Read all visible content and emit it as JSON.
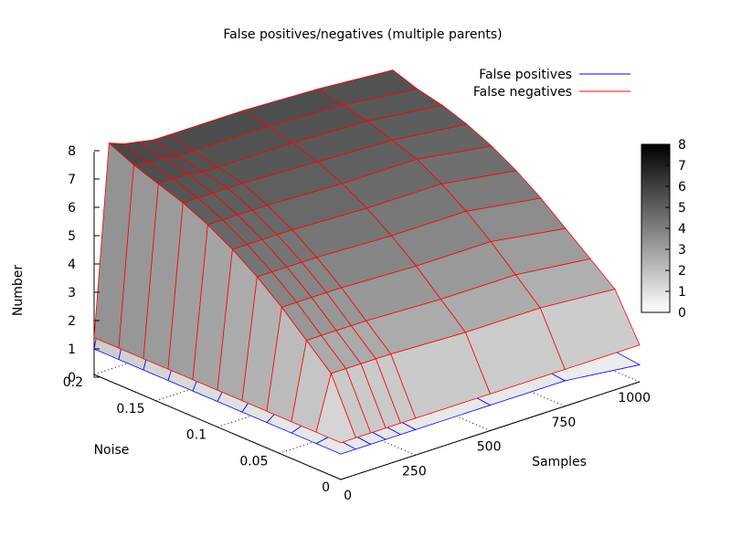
{
  "chart_data": {
    "type": "surface",
    "title": "False positives/negatives (multiple parents)",
    "xlabel": "Samples",
    "ylabel": "Noise",
    "zlabel": "Number",
    "xlim": [
      0,
      1000
    ],
    "ylim": [
      0,
      0.2
    ],
    "zlim": [
      0,
      8
    ],
    "x_ticks": [
      "0",
      "250",
      "500",
      "750",
      "1000"
    ],
    "y_ticks": [
      "0",
      "0.05",
      "0.1",
      "0.15",
      "0.2"
    ],
    "z_ticks": [
      "0",
      "1",
      "2",
      "3",
      "4",
      "5",
      "6",
      "7",
      "8"
    ],
    "colorbox_ticks": [
      "0",
      "1",
      "2",
      "3",
      "4",
      "5",
      "6",
      "7",
      "8"
    ],
    "colorbox": "grayscale, right side",
    "legend_position": "top-right",
    "samples": [
      0,
      50,
      100,
      150,
      200,
      250,
      500,
      750,
      1000
    ],
    "noise": [
      0,
      0.02,
      0.04,
      0.06,
      0.08,
      0.1,
      0.12,
      0.14,
      0.16,
      0.18,
      0.2
    ],
    "series": [
      {
        "name": "False positives",
        "color": "#0000ff",
        "values": [
          [
            0.9,
            0.9,
            0.9,
            0.9,
            0.9,
            0.9,
            0.9,
            0.9,
            0.9,
            0.9,
            0.9
          ],
          [
            0.9,
            1.0,
            1.1,
            1.3,
            1.5,
            1.8,
            2.1,
            2.4,
            2.8,
            3.2,
            3.5
          ],
          [
            0.9,
            1.0,
            1.1,
            1.3,
            1.5,
            1.8,
            2.1,
            2.4,
            2.8,
            3.2,
            3.4
          ],
          [
            0.9,
            1.0,
            1.1,
            1.3,
            1.5,
            1.8,
            2.1,
            2.4,
            2.8,
            3.1,
            3.3
          ],
          [
            0.9,
            1.0,
            1.1,
            1.3,
            1.5,
            1.8,
            2.1,
            2.4,
            2.7,
            3.1,
            3.3
          ],
          [
            0.9,
            1.0,
            1.1,
            1.3,
            1.5,
            1.8,
            2.1,
            2.4,
            2.7,
            3.0,
            3.3
          ],
          [
            0.9,
            1.0,
            1.1,
            1.3,
            1.5,
            1.8,
            2.1,
            2.4,
            2.7,
            3.0,
            3.2
          ],
          [
            0.9,
            1.0,
            1.1,
            1.3,
            1.5,
            1.8,
            2.0,
            2.3,
            2.6,
            2.9,
            3.1
          ],
          [
            0.6,
            0.7,
            0.8,
            0.9,
            1.1,
            1.3,
            1.6,
            1.9,
            2.1,
            2.4,
            2.6
          ]
        ]
      },
      {
        "name": "False negatives",
        "color": "#ff0000",
        "values": [
          [
            1.3,
            1.3,
            1.3,
            1.3,
            1.3,
            1.3,
            1.3,
            1.3,
            1.3,
            1.3,
            1.3
          ],
          [
            1.3,
            3.2,
            4.0,
            4.8,
            5.5,
            6.1,
            6.6,
            7.0,
            7.3,
            7.6,
            8.0
          ],
          [
            1.3,
            3.2,
            4.0,
            4.8,
            5.5,
            6.1,
            6.6,
            7.0,
            7.3,
            7.5,
            7.8
          ],
          [
            1.3,
            3.2,
            4.0,
            4.8,
            5.5,
            6.1,
            6.6,
            7.0,
            7.3,
            7.5,
            7.7
          ],
          [
            1.3,
            3.2,
            4.0,
            4.8,
            5.5,
            6.1,
            6.6,
            7.0,
            7.2,
            7.4,
            7.6
          ],
          [
            1.3,
            3.2,
            4.0,
            4.8,
            5.5,
            6.1,
            6.6,
            7.0,
            7.2,
            7.4,
            7.6
          ],
          [
            1.3,
            3.1,
            3.9,
            4.7,
            5.4,
            6.0,
            6.5,
            6.9,
            7.2,
            7.4,
            7.6
          ],
          [
            1.3,
            3.1,
            3.9,
            4.7,
            5.4,
            6.0,
            6.5,
            6.8,
            7.1,
            7.3,
            7.5
          ],
          [
            1.3,
            2.9,
            3.6,
            4.3,
            5.0,
            5.6,
            6.1,
            6.5,
            6.8,
            7.0,
            7.3
          ]
        ]
      }
    ]
  }
}
